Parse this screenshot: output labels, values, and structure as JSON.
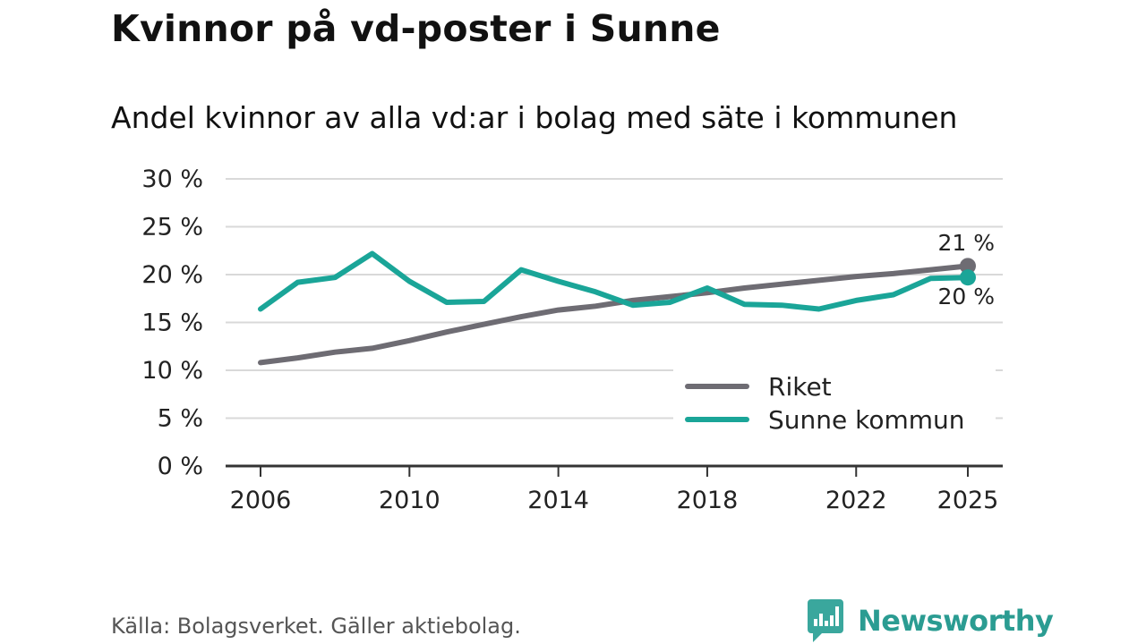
{
  "header": {
    "title": "Kvinnor på vd-poster i Sunne",
    "subtitle": "Andel kvinnor av alla vd:ar i bolag med säte i kommunen"
  },
  "footer": {
    "source": "Källa: Bolagsverket. Gäller aktiebolag.",
    "brand": "Newsworthy",
    "brand_icon": "bar-chart-icon"
  },
  "colors": {
    "riket": "#6e6c73",
    "sunne": "#1aa598",
    "grid": "#d9d9d9",
    "axis": "#333333",
    "brand": "#2b9c92"
  },
  "chart_data": {
    "type": "line",
    "title": "Kvinnor på vd-poster i Sunne",
    "subtitle": "Andel kvinnor av alla vd:ar i bolag med säte i kommunen",
    "xlabel": "",
    "ylabel": "",
    "x": [
      2006,
      2007,
      2008,
      2009,
      2010,
      2011,
      2012,
      2013,
      2014,
      2015,
      2016,
      2017,
      2018,
      2019,
      2020,
      2021,
      2022,
      2023,
      2024,
      2025
    ],
    "xlim": [
      2006,
      2025
    ],
    "x_ticks": [
      2006,
      2010,
      2014,
      2018,
      2022,
      2025
    ],
    "x_tick_labels": [
      "2006",
      "2010",
      "2014",
      "2018",
      "2022",
      "2025"
    ],
    "ylim": [
      0,
      30
    ],
    "y_ticks": [
      0,
      5,
      10,
      15,
      20,
      25,
      30
    ],
    "y_tick_labels": [
      "0 %",
      "5 %",
      "10 %",
      "15 %",
      "20 %",
      "25 %",
      "30 %"
    ],
    "grid": true,
    "legend_position": "bottom-right",
    "series": [
      {
        "name": "Riket",
        "values": [
          10.8,
          11.3,
          11.9,
          12.3,
          13.1,
          14.0,
          14.8,
          15.6,
          16.3,
          16.7,
          17.3,
          17.7,
          18.1,
          18.6,
          19.0,
          19.4,
          19.8,
          20.1,
          20.5,
          20.9
        ],
        "end_label": "21 %"
      },
      {
        "name": "Sunne kommun",
        "values": [
          16.4,
          19.2,
          19.7,
          22.2,
          19.3,
          17.1,
          17.2,
          20.5,
          19.3,
          18.2,
          16.8,
          17.1,
          18.6,
          16.9,
          16.8,
          16.4,
          17.3,
          17.9,
          19.6,
          19.7
        ],
        "end_label": "20 %"
      }
    ]
  }
}
